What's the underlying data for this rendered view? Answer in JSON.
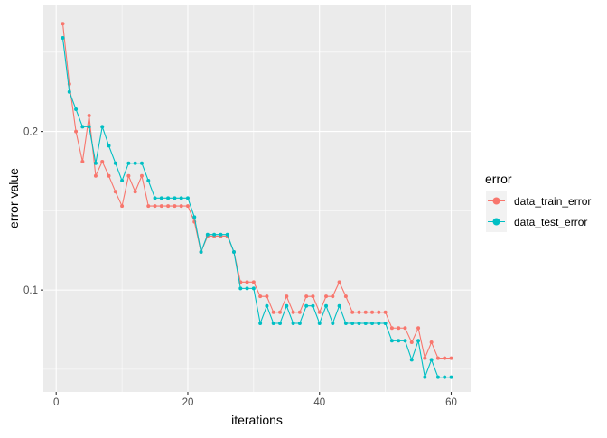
{
  "chart_data": {
    "type": "line",
    "xlabel": "iterations",
    "ylabel": "error value",
    "xlim": [
      -1.95,
      62.95
    ],
    "ylim": [
      0.0357,
      0.2801
    ],
    "xticks": [
      0,
      20,
      40,
      60
    ],
    "xtick_labels": [
      "0",
      "20",
      "40",
      "60"
    ],
    "yticks": [
      0.1,
      0.2
    ],
    "ytick_labels": [
      "0.1",
      "0.2"
    ],
    "grid": true,
    "legend": {
      "title": "error",
      "position": "right"
    },
    "series": [
      {
        "name": "data_train_error",
        "color": "#F8766D",
        "x": [
          1,
          2,
          3,
          4,
          5,
          6,
          7,
          8,
          9,
          10,
          11,
          12,
          13,
          14,
          15,
          16,
          17,
          18,
          19,
          20,
          21,
          22,
          23,
          24,
          25,
          26,
          27,
          28,
          29,
          30,
          31,
          32,
          33,
          34,
          35,
          36,
          37,
          38,
          39,
          40,
          41,
          42,
          43,
          44,
          45,
          46,
          47,
          48,
          49,
          50,
          51,
          52,
          53,
          54,
          55,
          56,
          57,
          58,
          59,
          60
        ],
        "values": [
          0.268,
          0.23,
          0.2,
          0.181,
          0.21,
          0.172,
          0.181,
          0.172,
          0.162,
          0.153,
          0.172,
          0.162,
          0.172,
          0.153,
          0.153,
          0.153,
          0.153,
          0.153,
          0.153,
          0.153,
          0.143,
          0.124,
          0.134,
          0.134,
          0.134,
          0.134,
          0.124,
          0.105,
          0.105,
          0.105,
          0.096,
          0.096,
          0.086,
          0.086,
          0.096,
          0.086,
          0.086,
          0.096,
          0.096,
          0.086,
          0.096,
          0.096,
          0.105,
          0.096,
          0.086,
          0.086,
          0.086,
          0.086,
          0.086,
          0.086,
          0.076,
          0.076,
          0.076,
          0.067,
          0.076,
          0.057,
          0.067,
          0.057,
          0.057,
          0.057
        ]
      },
      {
        "name": "data_test_error",
        "color": "#00BFC4",
        "x": [
          1,
          2,
          3,
          4,
          5,
          6,
          7,
          8,
          9,
          10,
          11,
          12,
          13,
          14,
          15,
          16,
          17,
          18,
          19,
          20,
          21,
          22,
          23,
          24,
          25,
          26,
          27,
          28,
          29,
          30,
          31,
          32,
          33,
          34,
          35,
          36,
          37,
          38,
          39,
          40,
          41,
          42,
          43,
          44,
          45,
          46,
          47,
          48,
          49,
          50,
          51,
          52,
          53,
          54,
          55,
          56,
          57,
          58,
          59,
          60
        ],
        "values": [
          0.259,
          0.225,
          0.214,
          0.203,
          0.203,
          0.18,
          0.203,
          0.191,
          0.18,
          0.169,
          0.18,
          0.18,
          0.18,
          0.169,
          0.158,
          0.158,
          0.158,
          0.158,
          0.158,
          0.158,
          0.146,
          0.124,
          0.135,
          0.135,
          0.135,
          0.135,
          0.124,
          0.101,
          0.101,
          0.101,
          0.079,
          0.09,
          0.079,
          0.079,
          0.09,
          0.079,
          0.079,
          0.09,
          0.09,
          0.079,
          0.09,
          0.079,
          0.09,
          0.079,
          0.079,
          0.079,
          0.079,
          0.079,
          0.079,
          0.079,
          0.068,
          0.068,
          0.068,
          0.056,
          0.068,
          0.045,
          0.056,
          0.045,
          0.045,
          0.045
        ]
      }
    ]
  }
}
